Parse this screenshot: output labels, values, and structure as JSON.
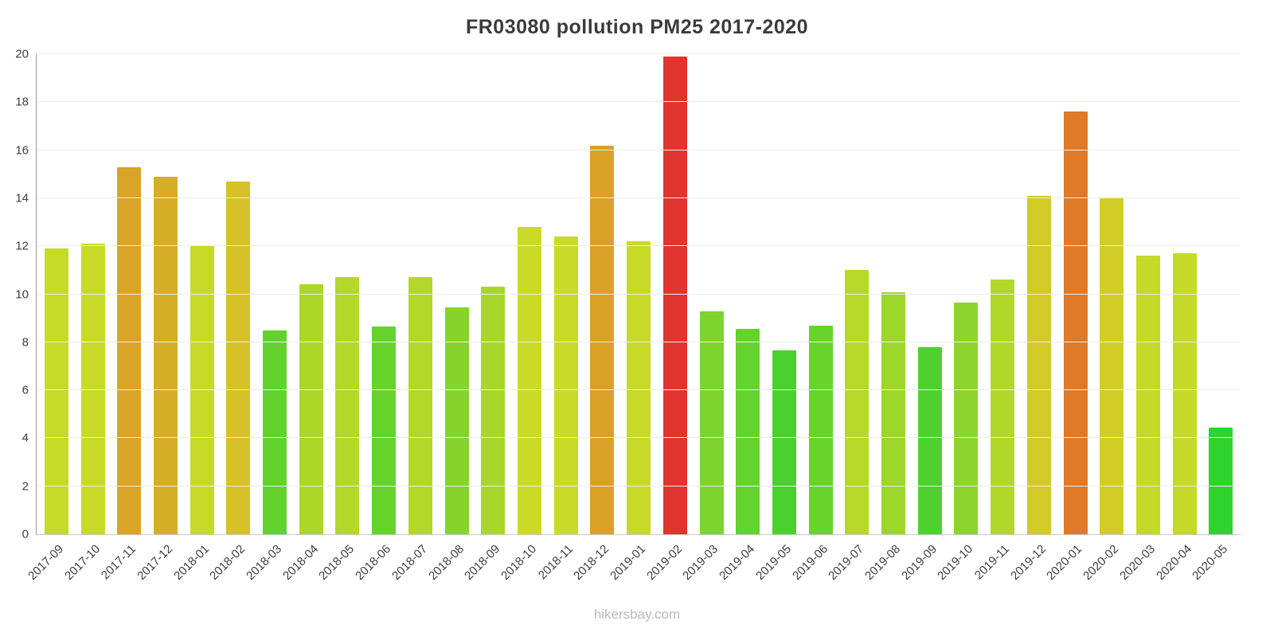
{
  "title": "FR03080 pollution PM25 2017-2020",
  "footer": "hikersbay.com",
  "chart_data": {
    "type": "bar",
    "title": "FR03080 pollution PM25 2017-2020",
    "xlabel": "",
    "ylabel": "",
    "ylim": [
      0,
      20
    ],
    "yticks": [
      0,
      2,
      4,
      6,
      8,
      10,
      12,
      14,
      16,
      18,
      20
    ],
    "grid": true,
    "legend": "none",
    "categories": [
      "2017-09",
      "2017-10",
      "2017-11",
      "2017-12",
      "2018-01",
      "2018-02",
      "2018-03",
      "2018-04",
      "2018-05",
      "2018-06",
      "2018-07",
      "2018-08",
      "2018-09",
      "2018-10",
      "2018-11",
      "2018-12",
      "2019-01",
      "2019-02",
      "2019-03",
      "2019-04",
      "2019-05",
      "2019-06",
      "2019-07",
      "2019-08",
      "2019-09",
      "2019-10",
      "2019-11",
      "2019-12",
      "2020-01",
      "2020-02",
      "2020-03",
      "2020-04",
      "2020-05"
    ],
    "values": [
      11.9,
      12.1,
      15.3,
      14.9,
      12.0,
      14.7,
      8.5,
      10.4,
      10.7,
      8.65,
      10.7,
      9.45,
      10.3,
      12.8,
      12.4,
      16.2,
      12.2,
      19.9,
      9.3,
      8.55,
      7.65,
      8.7,
      11.0,
      10.1,
      7.8,
      9.65,
      10.6,
      14.1,
      17.6,
      14.0,
      11.6,
      11.7,
      4.45
    ],
    "bar_colors": [
      "#c6da28",
      "#c8da28",
      "#d9a427",
      "#d6ad27",
      "#c8da28",
      "#d6c126",
      "#61d22e",
      "#abd729",
      "#b3d829",
      "#66d32d",
      "#b3d829",
      "#86d42b",
      "#a8d729",
      "#cbda28",
      "#c9da28",
      "#d9a125",
      "#c8da28",
      "#e0342f",
      "#7ed42c",
      "#63d32e",
      "#4bd02f",
      "#68d32d",
      "#b8d829",
      "#9dd62a",
      "#4ed12f",
      "#8dd52b",
      "#b1d829",
      "#d2cb26",
      "#df7a28",
      "#d2cd26",
      "#c4d928",
      "#c5d928",
      "#2ed32e"
    ],
    "axis_color": "#999999",
    "gridline_color": "#ececec",
    "title_color": "#3b3b3b",
    "tick_label_color": "#3d3d3d",
    "footer_color": "#b9b9b9"
  }
}
